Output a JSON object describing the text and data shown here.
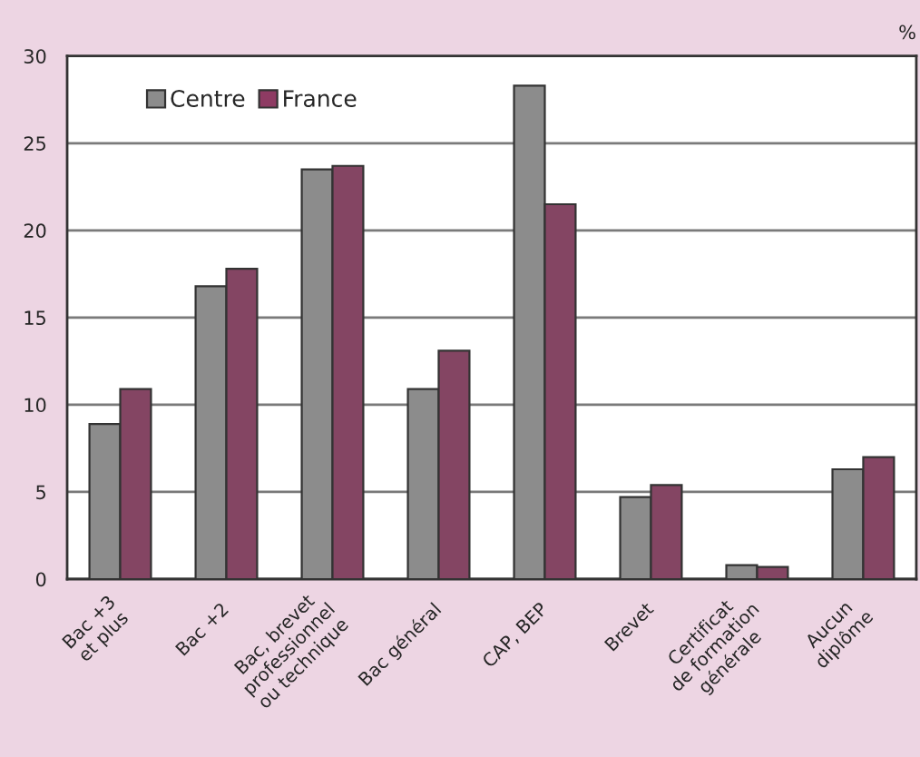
{
  "chart_data": {
    "type": "bar",
    "ylabel": "%",
    "categories": [
      "Bac +3\net plus",
      "Bac +2",
      "Bac, brevet\nprofessionnel\nou technique",
      "Bac général",
      "CAP, BEP",
      "Brevet",
      "Certificat\nde formation\ngénérale",
      "Aucun\ndiplôme"
    ],
    "series": [
      {
        "name": "Centre",
        "color": "#8c8c8c",
        "values": [
          8.9,
          16.8,
          23.5,
          10.9,
          28.3,
          4.7,
          0.8,
          6.3
        ]
      },
      {
        "name": "France",
        "color": "#8e3b63",
        "values": [
          10.9,
          17.8,
          23.7,
          13.1,
          21.5,
          5.4,
          0.7,
          7.0
        ]
      }
    ],
    "ylim": [
      0,
      30
    ],
    "yticks": [
      0,
      5,
      10,
      15,
      20,
      25,
      30
    ],
    "grid": "y",
    "legend": "top left"
  }
}
